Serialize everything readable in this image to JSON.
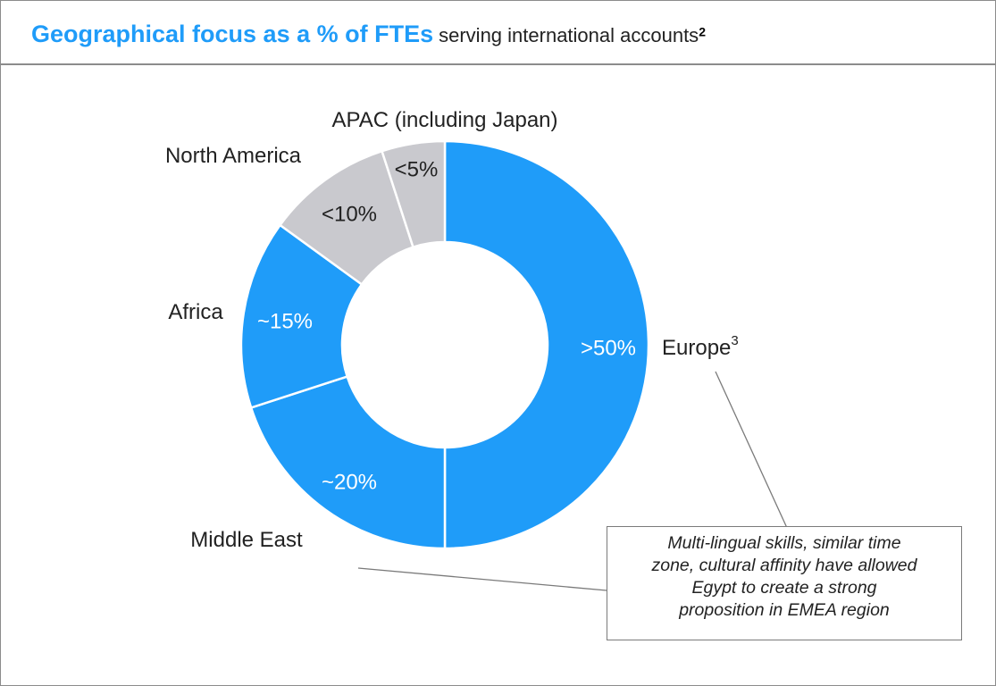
{
  "chart_data": {
    "type": "donut",
    "title": "Geographical focus as a % of FTEs",
    "subtitle": "serving international accounts",
    "subtitle_footnote": "2",
    "categories": [
      "Europe",
      "Middle East",
      "Africa",
      "North America",
      "APAC (including Japan)"
    ],
    "category_footnotes": [
      "3",
      null,
      null,
      null,
      null
    ],
    "values": [
      50,
      20,
      15,
      10,
      5
    ],
    "value_labels": [
      ">50%",
      "~20%",
      "~15%",
      "<10%",
      "<5%"
    ],
    "colors": [
      "#1f9cf9",
      "#1f9cf9",
      "#1f9cf9",
      "#c9c9ce",
      "#c9c9ce"
    ],
    "annotation": "Multi-lingual skills, similar time zone, cultural affinity have allowed Egypt to create a strong proposition in EMEA region"
  }
}
